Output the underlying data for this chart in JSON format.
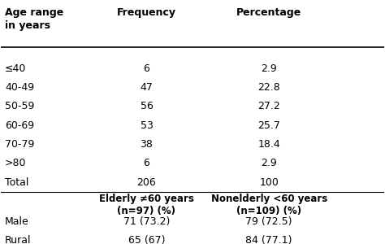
{
  "col1_header": "Age range\nin years",
  "col2_header": "Frequency",
  "col3_header": "Percentage",
  "main_rows": [
    [
      "≤40",
      "6",
      "2.9"
    ],
    [
      "40-49",
      "47",
      "22.8"
    ],
    [
      "50-59",
      "56",
      "27.2"
    ],
    [
      "60-69",
      "53",
      "25.7"
    ],
    [
      "70-79",
      "38",
      "18.4"
    ],
    [
      ">80",
      "6",
      "2.9"
    ],
    [
      "Total",
      "206",
      "100"
    ]
  ],
  "sub_col2_header": "Elderly ≠60 years\n(n=97) (%)",
  "sub_col3_header": "Nonelderly <60 years\n(n=109) (%)",
  "sub_rows": [
    [
      "Male",
      "71 (73.2)",
      "79 (72.5)"
    ],
    [
      "Rural",
      "65 (67)",
      "84 (77.1)"
    ]
  ],
  "bg_color": "#ffffff",
  "text_color": "#000000",
  "header_fontsize": 9,
  "body_fontsize": 9
}
